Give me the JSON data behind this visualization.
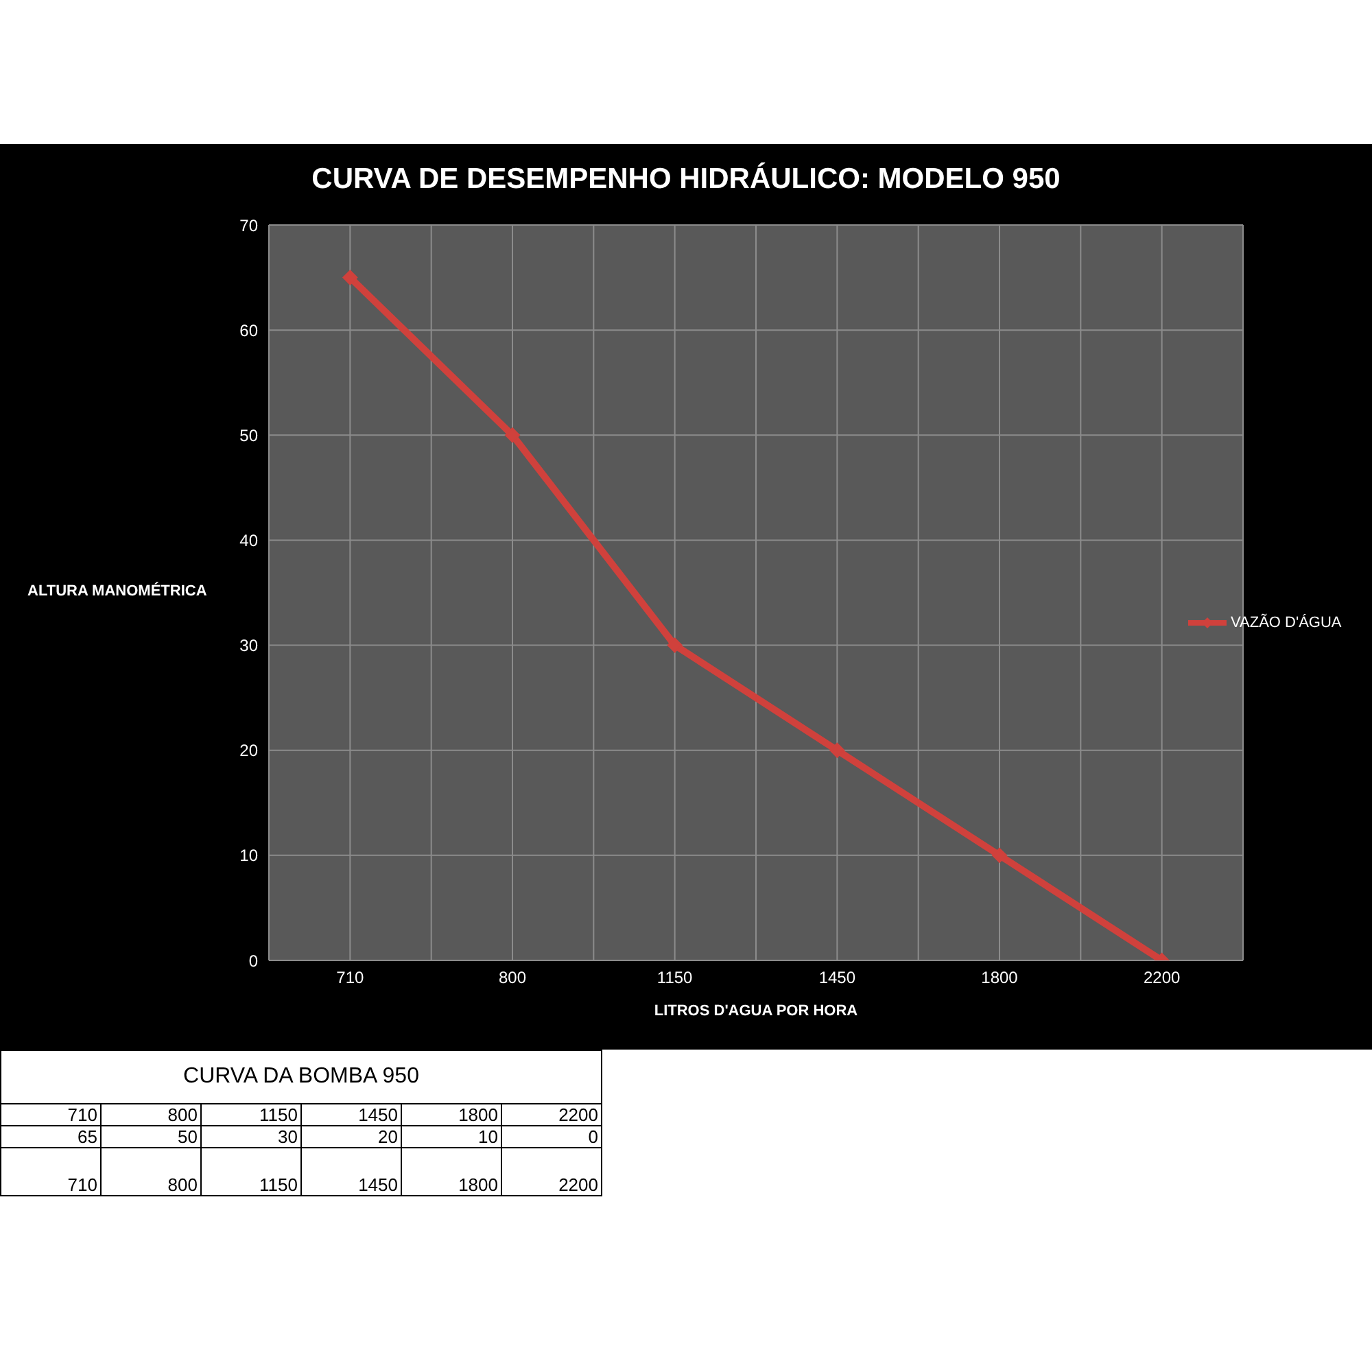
{
  "chart_data": {
    "type": "line",
    "title": "CURVA DE DESEMPENHO HIDRÁULICO: MODELO 950",
    "xlabel": "LITROS D'AGUA POR HORA",
    "ylabel": "ALTURA MANOMÉTRICA",
    "categories": [
      "710",
      "800",
      "1150",
      "1450",
      "1800",
      "2200"
    ],
    "series": [
      {
        "name": "VAZÃO D'ÁGUA",
        "color": "#d0413c",
        "values": [
          65,
          50,
          30,
          20,
          10,
          0
        ]
      }
    ],
    "ylim": [
      0,
      70
    ],
    "yticks": [
      0,
      10,
      20,
      30,
      40,
      50,
      60,
      70
    ],
    "grid": true,
    "legend": "right",
    "marker": "diamond",
    "annotations": [
      "CURVA DA BOMBA 950",
      "65",
      "50",
      "30",
      "20",
      "10",
      "0"
    ]
  }
}
